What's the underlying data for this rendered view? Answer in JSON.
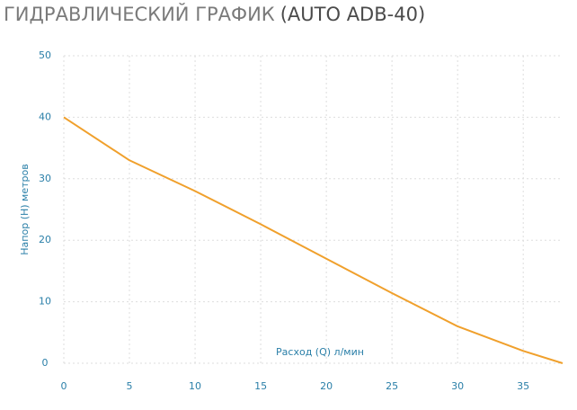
{
  "chart_data": {
    "type": "line",
    "title": [
      "ГИДРАВЛИЧЕСКИЙ ГРАФИК",
      "(AUTO ADB-40)"
    ],
    "x_label": "Расход (Q) л/мин",
    "y_label": "Напор (H) метров",
    "x": [
      0,
      5,
      10,
      15,
      20,
      25,
      30,
      35,
      38
    ],
    "series": [
      {
        "color": "#f0a02c",
        "values": [
          40,
          33,
          28,
          22.6,
          17,
          11.4,
          6,
          2,
          0
        ]
      }
    ],
    "xlim": [
      0,
      38
    ],
    "xticks": [
      0,
      5,
      10,
      15,
      20,
      25,
      30,
      35
    ],
    "ylim": [
      0,
      50
    ],
    "yticks": [
      0,
      10,
      20,
      30,
      40,
      50
    ],
    "grid": true
  }
}
